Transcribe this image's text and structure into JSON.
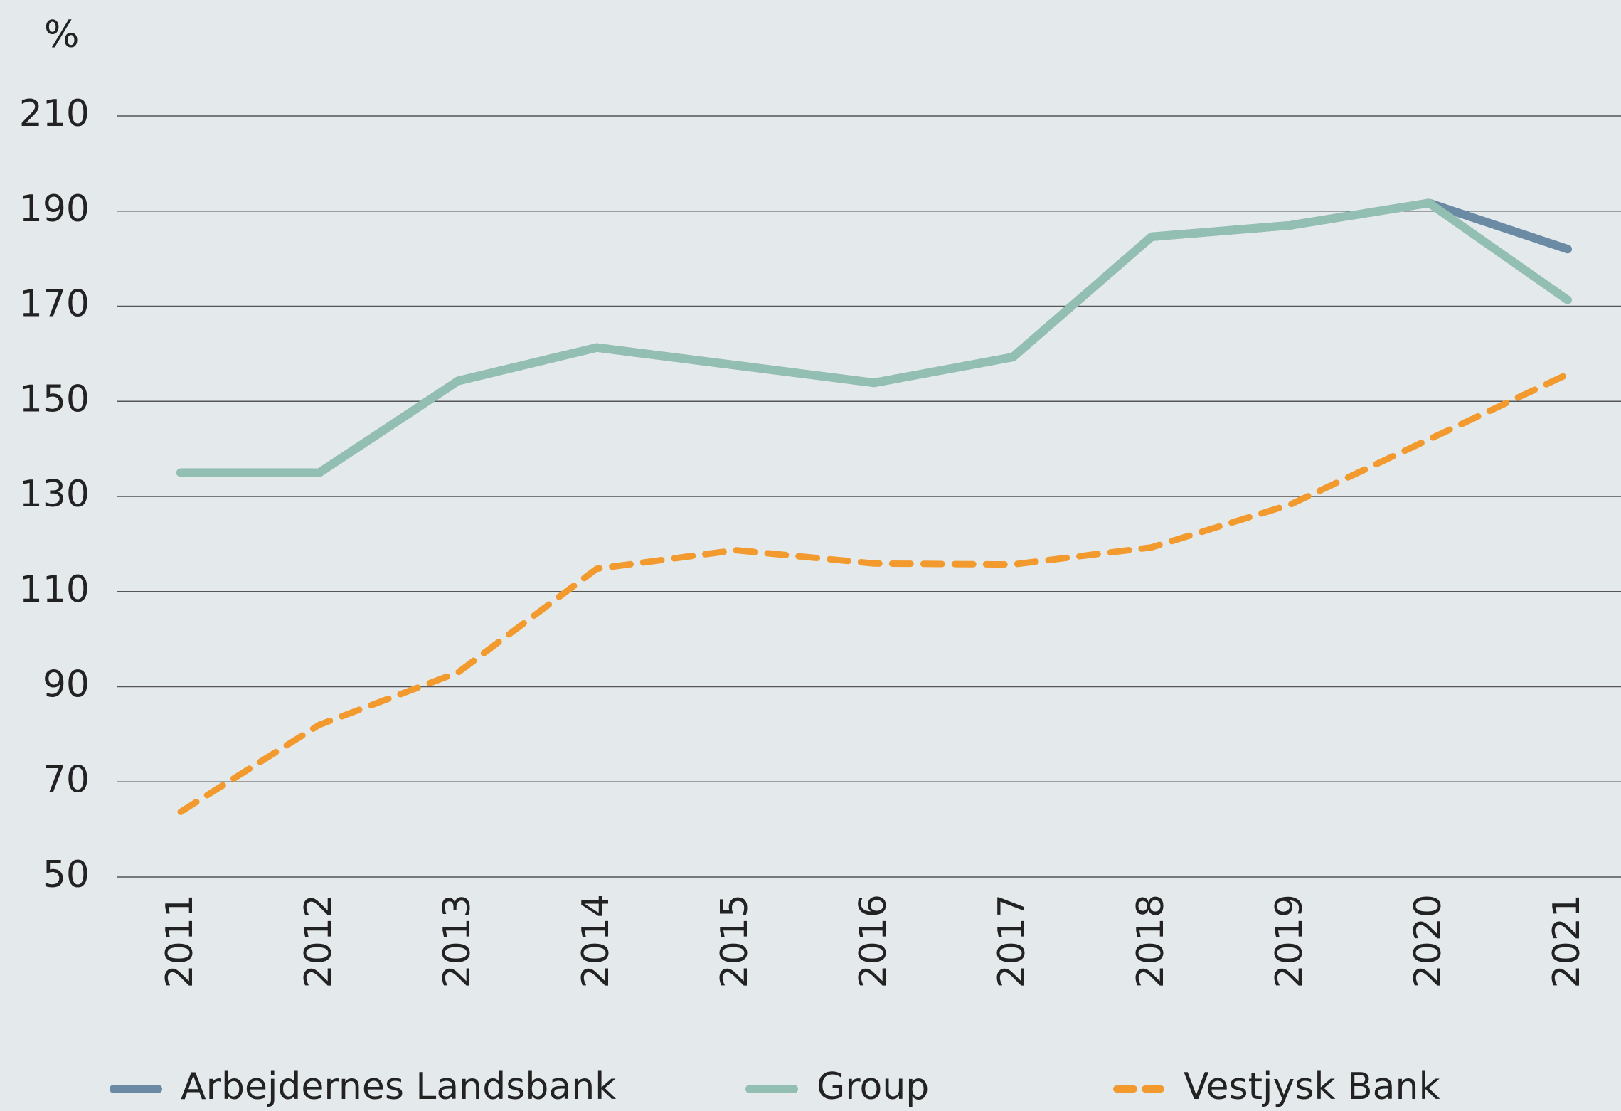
{
  "chart_data": {
    "type": "line",
    "y_label": "%",
    "categories": [
      "2011",
      "2012",
      "2013",
      "2014",
      "2015",
      "2016",
      "2017",
      "2018",
      "2019",
      "2020",
      "2021"
    ],
    "series": [
      {
        "name": "Arbejdernes Landsbank",
        "color": "#6a8ba3",
        "dash": false,
        "values": [
          135,
          135,
          154.3,
          161.3,
          157.6,
          153.9,
          159.3,
          184.6,
          187,
          191.7,
          182
        ]
      },
      {
        "name": "Group",
        "color": "#93bfb3",
        "dash": false,
        "values": [
          135,
          135,
          154.3,
          161.3,
          157.6,
          153.9,
          159.3,
          184.6,
          187,
          191.7,
          171.3
        ]
      },
      {
        "name": "Vestjysk Bank",
        "color": "#f29a2e",
        "dash": true,
        "values": [
          63.7,
          82,
          93,
          114.8,
          118.7,
          115.9,
          115.7,
          119.3,
          128.3,
          142,
          155.7
        ]
      }
    ],
    "ylim": [
      50,
      210
    ],
    "yticks": [
      50,
      70,
      90,
      110,
      130,
      150,
      170,
      190,
      210
    ],
    "grid": true,
    "legend": "bottom"
  }
}
